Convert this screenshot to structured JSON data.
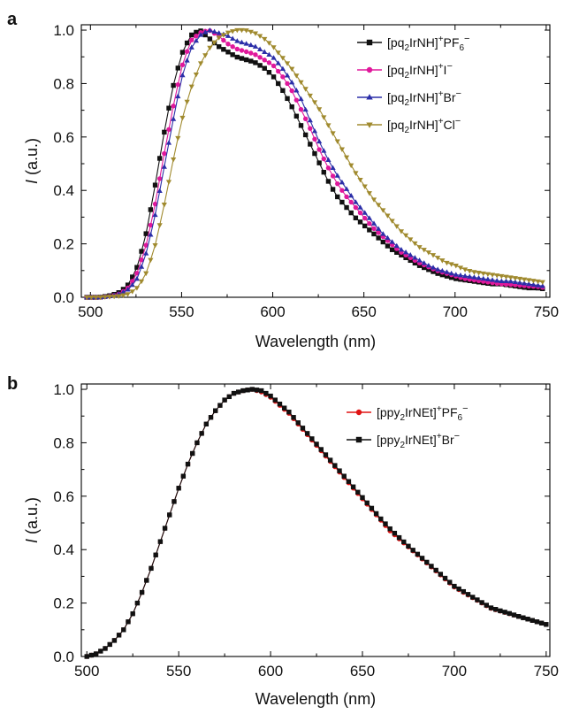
{
  "chart_data": [
    {
      "type": "line",
      "panel_label": "a",
      "xlabel": "Wavelength (nm)",
      "ylabel": "I (a.u.)",
      "xlim": [
        495,
        752
      ],
      "ylim": [
        0.0,
        1.02
      ],
      "x_ticks": [
        "500",
        "550",
        "600",
        "650",
        "700",
        "750"
      ],
      "y_ticks": [
        "0.0",
        "0.2",
        "0.4",
        "0.6",
        "0.8",
        "1.0"
      ],
      "grid": false,
      "legend_position": "top-right",
      "x": [
        498,
        505,
        510,
        515,
        520,
        525,
        530,
        535,
        540,
        545,
        550,
        555,
        560,
        565,
        570,
        575,
        580,
        585,
        590,
        595,
        600,
        605,
        610,
        615,
        620,
        625,
        630,
        635,
        640,
        645,
        650,
        655,
        660,
        665,
        670,
        675,
        680,
        685,
        690,
        695,
        700,
        705,
        710,
        715,
        720,
        725,
        730,
        735,
        740,
        745,
        750
      ],
      "series": [
        {
          "legend": {
            "prefix": "[pq",
            "sub1": "2",
            "mid": "IrNH]",
            "sup": "+",
            "anion": "PF",
            "sub2": "6",
            "end": "−"
          },
          "color": "#111111",
          "marker": "square",
          "values": [
            0.0,
            0.0,
            0.005,
            0.015,
            0.04,
            0.1,
            0.22,
            0.4,
            0.6,
            0.78,
            0.91,
            0.98,
            1.0,
            0.97,
            0.94,
            0.92,
            0.9,
            0.89,
            0.88,
            0.86,
            0.83,
            0.78,
            0.72,
            0.65,
            0.58,
            0.51,
            0.44,
            0.38,
            0.34,
            0.3,
            0.27,
            0.24,
            0.21,
            0.18,
            0.16,
            0.14,
            0.12,
            0.105,
            0.09,
            0.08,
            0.07,
            0.065,
            0.06,
            0.055,
            0.05,
            0.05,
            0.045,
            0.04,
            0.035,
            0.035,
            0.03
          ]
        },
        {
          "legend": {
            "prefix": "[pq",
            "sub1": "2",
            "mid": "IrNH]",
            "sup": "+",
            "anion": "I",
            "sub2": "",
            "end": "−"
          },
          "color": "#e0189b",
          "marker": "circle",
          "values": [
            0.0,
            0.0,
            0.003,
            0.01,
            0.03,
            0.08,
            0.18,
            0.33,
            0.52,
            0.7,
            0.86,
            0.96,
            0.99,
            1.0,
            0.98,
            0.95,
            0.93,
            0.92,
            0.91,
            0.89,
            0.87,
            0.83,
            0.78,
            0.71,
            0.64,
            0.56,
            0.49,
            0.43,
            0.38,
            0.34,
            0.3,
            0.26,
            0.23,
            0.2,
            0.17,
            0.15,
            0.13,
            0.115,
            0.1,
            0.09,
            0.08,
            0.07,
            0.065,
            0.06,
            0.055,
            0.05,
            0.048,
            0.045,
            0.042,
            0.04,
            0.035
          ]
        },
        {
          "legend": {
            "prefix": "[pq",
            "sub1": "2",
            "mid": "IrNH]",
            "sup": "+",
            "anion": "Br",
            "sub2": "",
            "end": "−"
          },
          "color": "#2b2ea8",
          "marker": "triangle-up",
          "values": [
            0.0,
            0.0,
            0.003,
            0.01,
            0.025,
            0.06,
            0.15,
            0.29,
            0.47,
            0.65,
            0.82,
            0.93,
            0.98,
            1.0,
            0.99,
            0.98,
            0.96,
            0.95,
            0.94,
            0.92,
            0.9,
            0.86,
            0.81,
            0.75,
            0.67,
            0.59,
            0.52,
            0.46,
            0.41,
            0.36,
            0.32,
            0.28,
            0.24,
            0.21,
            0.18,
            0.16,
            0.14,
            0.12,
            0.105,
            0.095,
            0.085,
            0.08,
            0.075,
            0.07,
            0.065,
            0.06,
            0.06,
            0.055,
            0.05,
            0.045,
            0.04
          ]
        },
        {
          "legend": {
            "prefix": "[pq",
            "sub1": "2",
            "mid": "IrNH]",
            "sup": "+",
            "anion": "Cl",
            "sub2": "",
            "end": "−"
          },
          "color": "#a08a2e",
          "marker": "triangle-down",
          "values": [
            0.0,
            0.0,
            0.002,
            0.004,
            0.01,
            0.03,
            0.08,
            0.18,
            0.33,
            0.5,
            0.66,
            0.78,
            0.87,
            0.93,
            0.97,
            0.99,
            1.0,
            1.0,
            0.99,
            0.97,
            0.94,
            0.9,
            0.86,
            0.81,
            0.76,
            0.71,
            0.65,
            0.59,
            0.53,
            0.47,
            0.42,
            0.37,
            0.33,
            0.29,
            0.25,
            0.22,
            0.19,
            0.17,
            0.15,
            0.13,
            0.12,
            0.105,
            0.095,
            0.09,
            0.085,
            0.08,
            0.075,
            0.07,
            0.065,
            0.06,
            0.055
          ]
        }
      ]
    },
    {
      "type": "line",
      "panel_label": "b",
      "xlabel": "Wavelength (nm)",
      "ylabel": "I (a.u.)",
      "xlim": [
        497,
        752
      ],
      "ylim": [
        0.0,
        1.02
      ],
      "x_ticks": [
        "500",
        "550",
        "600",
        "650",
        "700",
        "750"
      ],
      "y_ticks": [
        "0.0",
        "0.2",
        "0.4",
        "0.6",
        "0.8",
        "1.0"
      ],
      "grid": false,
      "legend_position": "top-right",
      "x": [
        500,
        505,
        510,
        515,
        520,
        525,
        530,
        535,
        540,
        545,
        550,
        555,
        560,
        565,
        570,
        575,
        580,
        585,
        590,
        595,
        600,
        605,
        610,
        615,
        620,
        625,
        630,
        635,
        640,
        645,
        650,
        655,
        660,
        665,
        670,
        675,
        680,
        685,
        690,
        695,
        700,
        705,
        710,
        715,
        720,
        725,
        730,
        735,
        740,
        745,
        750
      ],
      "series": [
        {
          "legend": {
            "prefix": "[ppy",
            "sub1": "2",
            "mid": "IrNEt]",
            "sup": "+",
            "anion": "PF",
            "sub2": "6",
            "end": "−"
          },
          "color": "#e01414",
          "marker": "circle",
          "values": [
            0.0,
            0.01,
            0.03,
            0.06,
            0.1,
            0.16,
            0.24,
            0.33,
            0.43,
            0.53,
            0.63,
            0.72,
            0.8,
            0.87,
            0.92,
            0.96,
            0.985,
            0.995,
            1.0,
            0.99,
            0.97,
            0.94,
            0.91,
            0.87,
            0.83,
            0.79,
            0.75,
            0.71,
            0.67,
            0.63,
            0.59,
            0.55,
            0.51,
            0.47,
            0.44,
            0.41,
            0.38,
            0.35,
            0.32,
            0.29,
            0.26,
            0.24,
            0.22,
            0.2,
            0.18,
            0.17,
            0.16,
            0.15,
            0.14,
            0.13,
            0.12
          ]
        },
        {
          "legend": {
            "prefix": "[ppy",
            "sub1": "2",
            "mid": "IrNEt]",
            "sup": "+",
            "anion": "Br",
            "sub2": "",
            "end": "−"
          },
          "color": "#111111",
          "marker": "square",
          "values": [
            0.0,
            0.01,
            0.03,
            0.06,
            0.1,
            0.16,
            0.24,
            0.33,
            0.43,
            0.53,
            0.63,
            0.72,
            0.8,
            0.87,
            0.92,
            0.96,
            0.985,
            0.995,
            1.0,
            0.995,
            0.975,
            0.945,
            0.915,
            0.875,
            0.835,
            0.795,
            0.755,
            0.715,
            0.675,
            0.635,
            0.595,
            0.555,
            0.515,
            0.478,
            0.445,
            0.413,
            0.383,
            0.353,
            0.323,
            0.293,
            0.263,
            0.243,
            0.222,
            0.202,
            0.182,
            0.171,
            0.161,
            0.15,
            0.14,
            0.13,
            0.12
          ]
        }
      ]
    }
  ]
}
